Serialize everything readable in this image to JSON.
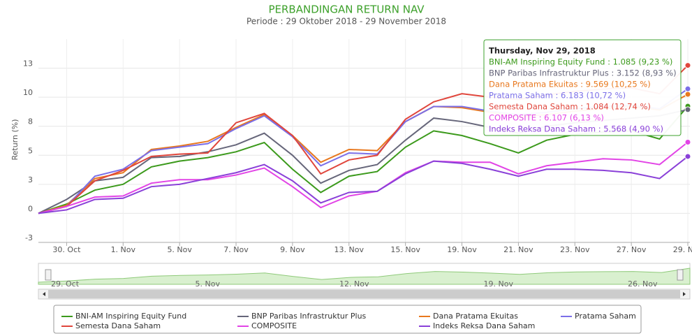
{
  "chart_data": {
    "type": "line",
    "title": "PERBANDINGAN RETURN NAV",
    "subtitle": "Periode : 29 Oktober 2018 - 29 November 2018",
    "y_label": "Return (%)",
    "categories": [
      null,
      "30. Oct",
      null,
      "1. Nov",
      null,
      "5. Nov",
      null,
      "7. Nov",
      null,
      "9. Nov",
      null,
      "13. Nov",
      null,
      "15. Nov",
      null,
      "19. Nov",
      null,
      "21. Nov",
      null,
      "23. Nov",
      null,
      "27. Nov",
      null,
      "29. Nov"
    ],
    "ylim": [
      -2.5,
      15
    ],
    "yticks": [
      {
        "value": -2.5,
        "label": "-3"
      },
      0,
      {
        "value": 2.5,
        "label": "3"
      },
      5,
      {
        "value": 7.5,
        "label": "8"
      },
      10,
      {
        "value": 12.5,
        "label": "13"
      }
    ],
    "grid": true,
    "series": [
      {
        "name": "BNI-AM Inspiring Equity Fund",
        "color": "#3c9a1c",
        "values": [
          0,
          0.8,
          2.0,
          2.5,
          4.0,
          4.5,
          4.8,
          5.3,
          6.1,
          3.8,
          1.8,
          3.2,
          3.6,
          5.7,
          7.1,
          6.7,
          6.0,
          5.2,
          6.3,
          6.8,
          7.0,
          7.1,
          6.4,
          9.23
        ]
      },
      {
        "name": "BNP Paribas Infrastruktur Plus",
        "color": "#66667a",
        "values": [
          0,
          1.2,
          2.8,
          3.1,
          4.8,
          4.9,
          5.3,
          5.9,
          6.9,
          5.0,
          2.6,
          3.7,
          4.2,
          6.3,
          8.2,
          7.9,
          7.4,
          6.9,
          7.5,
          7.8,
          8.0,
          8.2,
          8.4,
          8.93
        ]
      },
      {
        "name": "Dana Pratama Ekuitas",
        "color": "#e8781e",
        "values": [
          0,
          0.7,
          3.0,
          3.5,
          5.5,
          5.8,
          6.2,
          7.4,
          8.5,
          6.7,
          4.4,
          5.5,
          5.4,
          7.9,
          9.2,
          9.1,
          8.7,
          8.3,
          8.5,
          8.8,
          9.0,
          9.2,
          8.9,
          10.25
        ]
      },
      {
        "name": "Pratama Saham",
        "color": "#7b6fe8",
        "values": [
          0,
          0.6,
          3.2,
          3.8,
          5.4,
          5.7,
          6.0,
          7.3,
          8.4,
          6.6,
          4.1,
          5.2,
          5.1,
          7.9,
          9.2,
          9.2,
          8.8,
          8.5,
          8.7,
          9.0,
          9.2,
          9.3,
          9.0,
          10.72
        ]
      },
      {
        "name": "Semesta Dana Saham",
        "color": "#e0463c",
        "values": [
          0,
          0.6,
          2.8,
          3.7,
          4.9,
          5.1,
          5.2,
          7.8,
          8.6,
          6.7,
          3.4,
          4.6,
          5.0,
          8.1,
          9.6,
          10.3,
          10.0,
          9.8,
          10.2,
          10.5,
          10.7,
          10.8,
          10.3,
          12.74
        ]
      },
      {
        "name": "COMPOSITE",
        "color": "#e244e6",
        "values": [
          0,
          0.6,
          1.4,
          1.5,
          2.6,
          2.9,
          2.9,
          3.3,
          3.9,
          2.3,
          0.5,
          1.5,
          1.9,
          3.5,
          4.5,
          4.4,
          4.4,
          3.4,
          4.1,
          4.4,
          4.7,
          4.6,
          4.2,
          6.13
        ]
      },
      {
        "name": "Indeks Reksa Dana Saham",
        "color": "#8a40d8",
        "values": [
          0,
          0.3,
          1.2,
          1.3,
          2.3,
          2.5,
          3.0,
          3.5,
          4.2,
          2.8,
          0.9,
          1.8,
          1.9,
          3.4,
          4.5,
          4.3,
          3.8,
          3.2,
          3.8,
          3.8,
          3.7,
          3.5,
          3.0,
          4.9
        ]
      }
    ],
    "tooltip": {
      "title": "Thursday, Nov 29, 2018",
      "items": [
        "BNI-AM Inspiring Equity Fund : 1.085 (9,23 %)",
        "BNP Paribas Infrastruktur Plus : 3.152 (8,93 %)",
        "Dana Pratama Ekuitas : 9.569 (10,25 %)",
        "Pratama Saham : 6.183 (10,72 %)",
        "Semesta Dana Saham : 1.084 (12,74 %)",
        "COMPOSITE : 6.107 (6,13 %)",
        "Indeks Reksa Dana Saham : 5.568 (4,90 %)"
      ]
    },
    "navigator_labels": [
      "29. Oct",
      "5. Nov",
      "12. Nov",
      "19. Nov",
      "26. Nov"
    ]
  }
}
